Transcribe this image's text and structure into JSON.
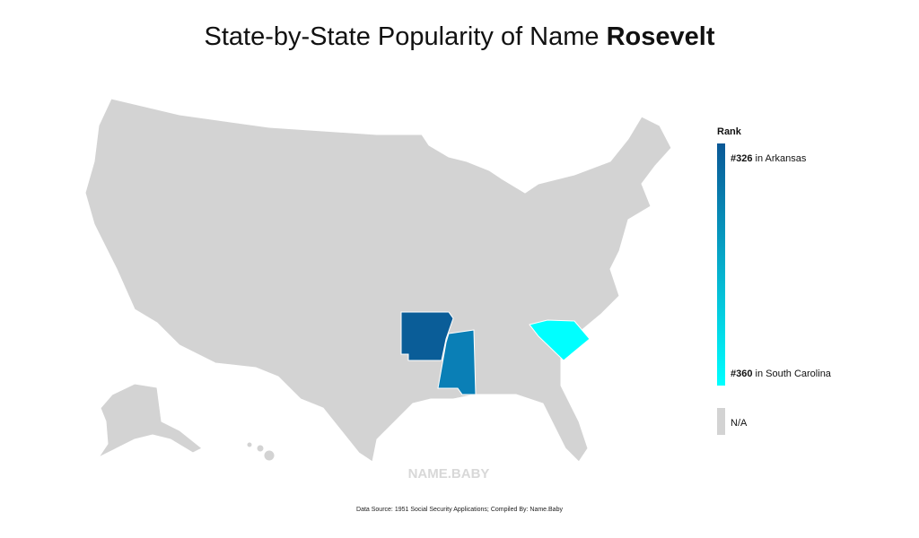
{
  "header": {
    "title": "State-by-State Popularity of Name ",
    "name": "Rosevelt"
  },
  "map": {
    "base_color": "#d3d3d3",
    "highlighted": [
      {
        "rank": 326,
        "color": "#0a5d98"
      },
      {
        "rank": 336,
        "color": "#0a7fb6"
      },
      {
        "rank": 360,
        "color": "#00ffff"
      }
    ]
  },
  "legend": {
    "title": "Rank",
    "top": {
      "rank": {
        "value": 326,
        "label": "#326"
      },
      "text": " in Arkansas"
    },
    "bottom": {
      "rank": {
        "value": 360,
        "label": "#360"
      },
      "text": " in South Carolina"
    },
    "top_color": "#0a5896",
    "bottom_color": "#00ffff",
    "na": "N/A"
  },
  "watermark": "NAME.BABY",
  "footer": "Data Source: 1951 Social Security Applications; Compiled By: Name.Baby"
}
